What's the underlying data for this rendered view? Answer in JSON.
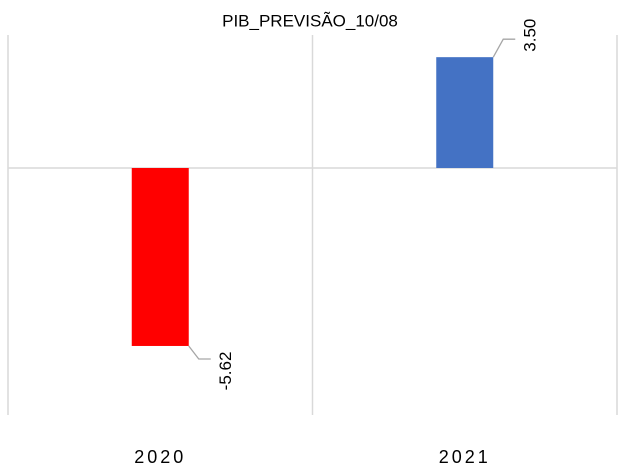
{
  "chart_data": {
    "type": "bar",
    "title": "PIB_PREVISÃO_10/08",
    "categories": [
      "2020",
      "2021"
    ],
    "values": [
      -5.62,
      3.5
    ],
    "value_labels": [
      "-5.62",
      "3.50"
    ],
    "colors": [
      "#ff0000",
      "#4472c4"
    ],
    "ylim": [
      -7.8,
      4.2
    ],
    "grid": true
  }
}
